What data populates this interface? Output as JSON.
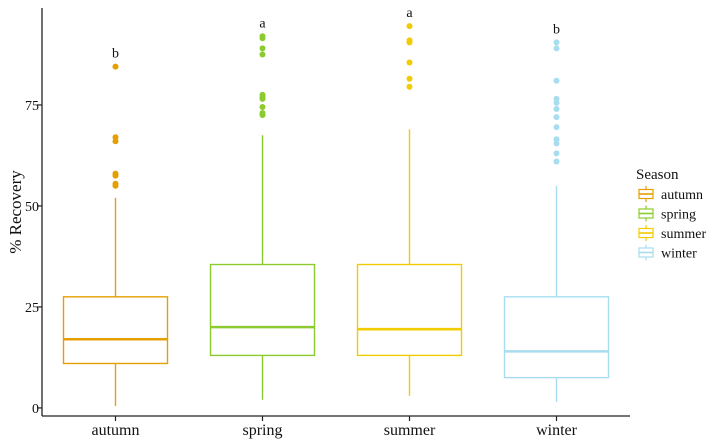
{
  "chart_data": {
    "type": "boxplot",
    "title": "",
    "xlabel": "",
    "ylabel": "% Recovery",
    "ylim": [
      -2,
      99
    ],
    "yticks": [
      0,
      25,
      50,
      75
    ],
    "categories": [
      "autumn",
      "spring",
      "summer",
      "winter"
    ],
    "legend": {
      "title": "Season",
      "position": "right",
      "entries": [
        "autumn",
        "spring",
        "summer",
        "winter"
      ]
    },
    "series": [
      {
        "name": "autumn",
        "color": "#E69F00",
        "group_letter": "b",
        "whisker_low": 0.5,
        "q1": 11,
        "median": 17,
        "q3": 27.5,
        "whisker_high": 52,
        "outliers": [
          55,
          55.5,
          57.5,
          58,
          66,
          67,
          84.5
        ]
      },
      {
        "name": "spring",
        "color": "#8CCB30",
        "group_letter": "a",
        "whisker_low": 2,
        "q1": 13,
        "median": 20,
        "q3": 35.5,
        "whisker_high": 67.5,
        "outliers": [
          72.5,
          73,
          74.5,
          76.5,
          77,
          77.5,
          87.5,
          89,
          91.5,
          92
        ]
      },
      {
        "name": "summer",
        "color": "#F2CB00",
        "group_letter": "a",
        "whisker_low": 3,
        "q1": 13,
        "median": 19.5,
        "q3": 35.5,
        "whisker_high": 69,
        "outliers": [
          79.5,
          81.5,
          85.5,
          90.5,
          91,
          94.5
        ]
      },
      {
        "name": "winter",
        "color": "#A8DDF0",
        "group_letter": "b",
        "whisker_low": 1.5,
        "q1": 7.5,
        "median": 14,
        "q3": 27.5,
        "whisker_high": 55,
        "outliers": [
          61,
          63,
          65.5,
          66.5,
          69.5,
          72,
          74,
          75.5,
          76.5,
          81,
          89,
          90.5
        ]
      }
    ]
  }
}
